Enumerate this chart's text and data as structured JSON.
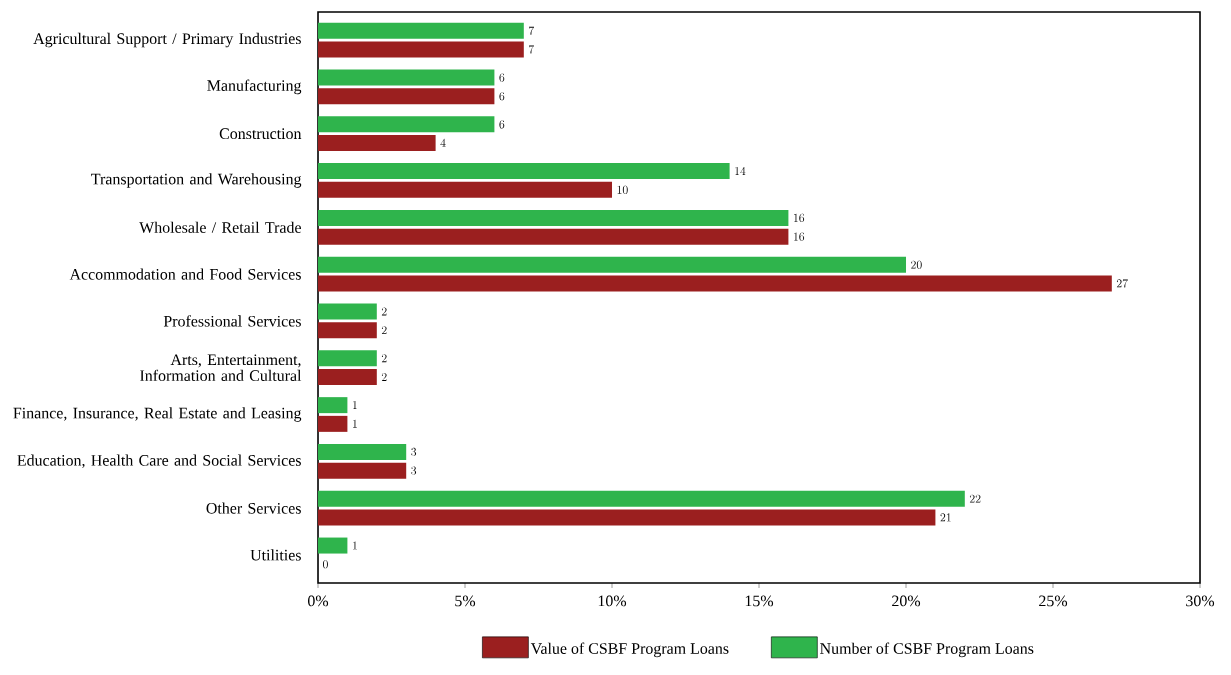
{
  "chart_data": {
    "type": "bar",
    "orientation": "horizontal",
    "categories": [
      "Agricultural Support / Primary Industries",
      "Manufacturing",
      "Construction",
      "Transportation and Warehousing",
      "Wholesale / Retail Trade",
      "Accommodation and Food Services",
      "Professional Services",
      "Arts, Entertainment, Information and Cultural",
      "Finance, Insurance, Real Estate and Leasing",
      "Education, Health Care and Social Services",
      "Other Services",
      "Utilities"
    ],
    "series": [
      {
        "name": "Value of CSBF Program Loans",
        "color": "#9b1f1f",
        "values": [
          7,
          6,
          4,
          10,
          16,
          27,
          2,
          2,
          1,
          3,
          21,
          0
        ]
      },
      {
        "name": "Number of CSBF Program Loans",
        "color": "#2fb44c",
        "values": [
          7,
          6,
          6,
          14,
          16,
          20,
          2,
          2,
          1,
          3,
          22,
          1
        ]
      }
    ],
    "xlim": [
      0,
      30
    ],
    "xticks": [
      {
        "value": 0,
        "label": "0%"
      },
      {
        "value": 5,
        "label": "5%"
      },
      {
        "value": 10,
        "label": "10%"
      },
      {
        "value": 15,
        "label": "15%"
      },
      {
        "value": 20,
        "label": "20%"
      },
      {
        "value": 25,
        "label": "25%"
      },
      {
        "value": 30,
        "label": "30%"
      }
    ],
    "data_labels": true,
    "grid": false,
    "legend": "bottom"
  }
}
